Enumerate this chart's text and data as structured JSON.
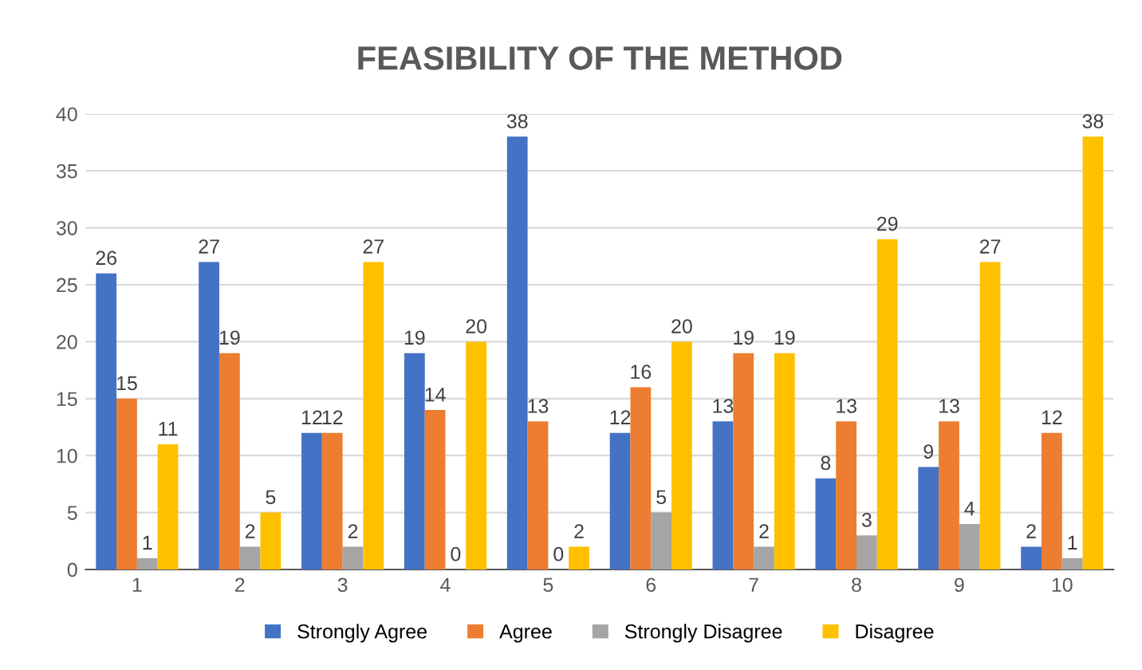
{
  "chart_data": {
    "type": "bar",
    "title": "FEASIBILITY OF THE METHOD",
    "categories": [
      "1",
      "2",
      "3",
      "4",
      "5",
      "6",
      "7",
      "8",
      "9",
      "10"
    ],
    "series": [
      {
        "name": "Strongly Agree",
        "color": "#4472c4",
        "values": [
          26,
          27,
          12,
          19,
          38,
          12,
          13,
          8,
          9,
          2
        ]
      },
      {
        "name": "Agree",
        "color": "#ed7d31",
        "values": [
          15,
          19,
          12,
          14,
          13,
          16,
          19,
          13,
          13,
          12
        ]
      },
      {
        "name": "Strongly Disagree",
        "color": "#a5a5a5",
        "values": [
          1,
          2,
          2,
          0,
          0,
          5,
          2,
          3,
          4,
          1
        ]
      },
      {
        "name": "Disagree",
        "color": "#ffc000",
        "values": [
          11,
          5,
          27,
          20,
          2,
          20,
          19,
          29,
          27,
          38
        ]
      }
    ],
    "ylim": [
      0,
      40
    ],
    "yticks": [
      0,
      5,
      10,
      15,
      20,
      25,
      30,
      35,
      40
    ],
    "grid": "y",
    "legend": "bottom",
    "data_labels": true
  }
}
